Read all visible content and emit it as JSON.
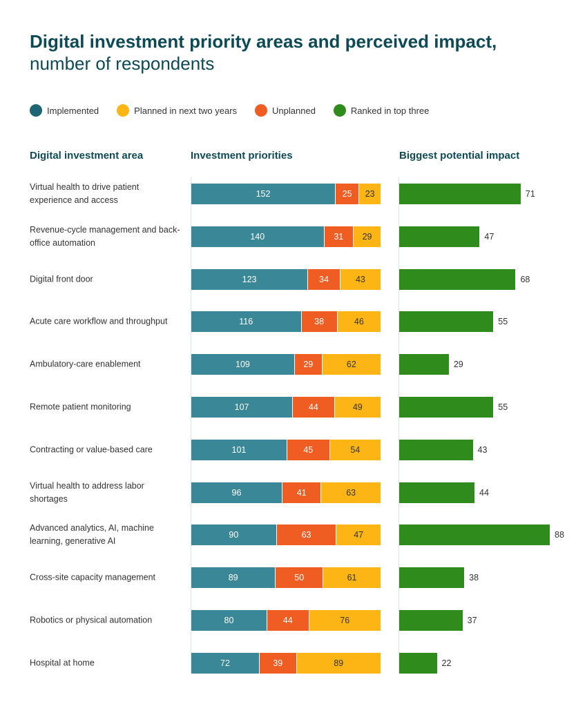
{
  "chart_data": {
    "type": "bar",
    "title_bold": "Digital investment priority areas and perceived impact,",
    "title_rest": " number of respondents",
    "legend": [
      {
        "label": "Implemented",
        "color": "#1f6675"
      },
      {
        "label": "Planned in next two years",
        "color": "#fdb515"
      },
      {
        "label": "Unplanned",
        "color": "#f05d23"
      },
      {
        "label": "Ranked in top three",
        "color": "#2e8b1c"
      }
    ],
    "bar_colors": {
      "implemented": "#3a8798",
      "unplanned": "#f05d23",
      "planned": "#fdb515",
      "impact": "#2e8b1c"
    },
    "column_headers": [
      "Digital investment area",
      "Investment priorities",
      "Biggest potential impact"
    ],
    "categories": [
      "Virtual health to drive patient experience and access",
      "Revenue-cycle management and back-office automation",
      "Digital front door",
      "Acute care workflow and throughput",
      "Ambulatory-care enablement",
      "Remote patient monitoring",
      "Contracting or value-based care",
      "Virtual health to address labor shortages",
      "Advanced analytics, AI, machine learning, generative AI",
      "Cross-site capacity management",
      "Robotics or physical automation",
      "Hospital at home"
    ],
    "series": [
      {
        "name": "Implemented",
        "values": [
          152,
          140,
          123,
          116,
          109,
          107,
          101,
          96,
          90,
          89,
          80,
          72
        ]
      },
      {
        "name": "Unplanned",
        "values": [
          25,
          31,
          34,
          38,
          29,
          44,
          45,
          41,
          63,
          50,
          44,
          39
        ]
      },
      {
        "name": "Planned in next two years",
        "values": [
          23,
          29,
          43,
          46,
          62,
          49,
          54,
          63,
          47,
          61,
          76,
          89
        ]
      },
      {
        "name": "Ranked in top three",
        "values": [
          71,
          47,
          68,
          55,
          29,
          55,
          43,
          44,
          88,
          38,
          37,
          22
        ]
      }
    ]
  }
}
